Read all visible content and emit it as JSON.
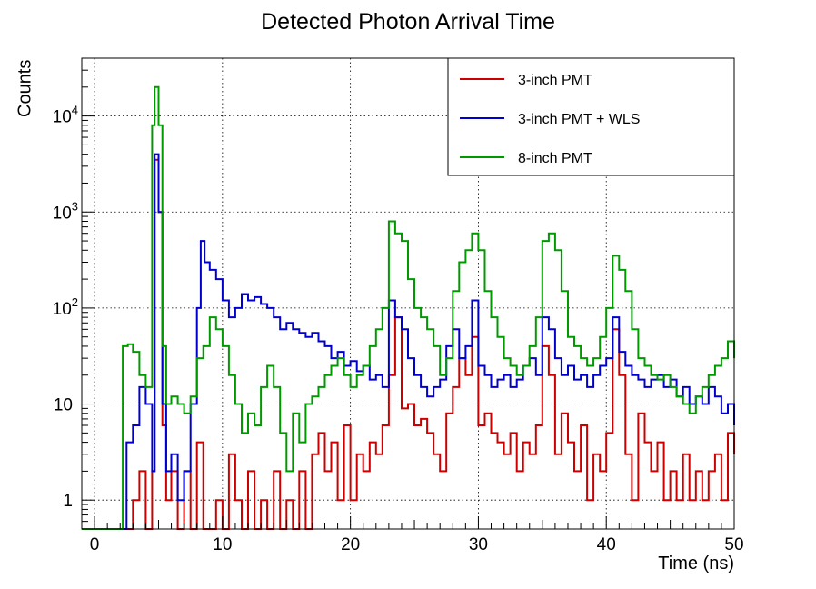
{
  "chart_data": {
    "type": "line",
    "title": "Detected Photon Arrival Time",
    "xlabel": "Time (ns)",
    "ylabel": "Counts",
    "x_scale": "linear",
    "y_scale": "log",
    "xlim": [
      -1,
      50
    ],
    "ylim": [
      0.5,
      40000
    ],
    "grid": true,
    "legend_position": "top-right",
    "x_ticks": [
      "0",
      "10",
      "20",
      "30",
      "40",
      "50"
    ],
    "y_ticks": [
      {
        "value": 1,
        "base": "1",
        "exp": ""
      },
      {
        "value": 10,
        "base": "10",
        "exp": ""
      },
      {
        "value": 100,
        "base": "10",
        "exp": "2"
      },
      {
        "value": 1000,
        "base": "10",
        "exp": "3"
      },
      {
        "value": 10000,
        "base": "10",
        "exp": "4"
      }
    ],
    "series": [
      {
        "name": "3-inch PMT",
        "color": "#cc0000",
        "points": [
          [
            -1,
            0.5
          ],
          [
            2.5,
            0.5
          ],
          [
            3,
            1
          ],
          [
            3.5,
            2
          ],
          [
            4,
            0.5
          ],
          [
            4.5,
            2
          ],
          [
            4.7,
            3500
          ],
          [
            5,
            1000
          ],
          [
            5.3,
            6
          ],
          [
            5.6,
            1
          ],
          [
            6,
            2
          ],
          [
            6.5,
            0.5
          ],
          [
            7,
            2
          ],
          [
            7.5,
            0.5
          ],
          [
            8,
            4
          ],
          [
            8.5,
            0.5
          ],
          [
            9,
            0.5
          ],
          [
            9.5,
            1
          ],
          [
            10,
            0.5
          ],
          [
            10.5,
            3
          ],
          [
            11,
            1
          ],
          [
            11.5,
            0.5
          ],
          [
            12,
            2
          ],
          [
            12.5,
            0.5
          ],
          [
            13,
            1
          ],
          [
            13.5,
            0.5
          ],
          [
            14,
            2
          ],
          [
            14.5,
            0.5
          ],
          [
            15,
            1
          ],
          [
            15.5,
            0.5
          ],
          [
            16,
            2
          ],
          [
            16.5,
            0.5
          ],
          [
            17,
            3
          ],
          [
            17.5,
            5
          ],
          [
            18,
            2
          ],
          [
            18.5,
            4
          ],
          [
            19,
            1
          ],
          [
            19.5,
            6
          ],
          [
            20,
            1
          ],
          [
            20.5,
            3
          ],
          [
            21,
            2
          ],
          [
            21.5,
            4
          ],
          [
            22,
            3
          ],
          [
            22.5,
            6
          ],
          [
            23,
            20
          ],
          [
            23.5,
            80
          ],
          [
            24,
            9
          ],
          [
            24.5,
            10
          ],
          [
            25,
            6
          ],
          [
            25.5,
            7
          ],
          [
            26,
            5
          ],
          [
            26.5,
            3
          ],
          [
            27,
            2
          ],
          [
            27.5,
            8
          ],
          [
            28,
            15
          ],
          [
            28.5,
            30
          ],
          [
            29,
            20
          ],
          [
            29.5,
            50
          ],
          [
            30,
            6
          ],
          [
            30.5,
            8
          ],
          [
            31,
            5
          ],
          [
            31.5,
            4
          ],
          [
            32,
            3
          ],
          [
            32.5,
            5
          ],
          [
            33,
            2
          ],
          [
            33.5,
            4
          ],
          [
            34,
            3
          ],
          [
            34.5,
            6
          ],
          [
            35,
            40
          ],
          [
            35.5,
            20
          ],
          [
            36,
            3
          ],
          [
            36.5,
            8
          ],
          [
            37,
            4
          ],
          [
            37.5,
            2
          ],
          [
            38,
            6
          ],
          [
            38.5,
            1
          ],
          [
            39,
            3
          ],
          [
            39.5,
            2
          ],
          [
            40,
            5
          ],
          [
            40.5,
            60
          ],
          [
            41,
            20
          ],
          [
            41.5,
            3
          ],
          [
            42,
            1
          ],
          [
            42.5,
            8
          ],
          [
            43,
            4
          ],
          [
            43.5,
            2
          ],
          [
            44,
            4
          ],
          [
            44.5,
            1
          ],
          [
            45,
            2
          ],
          [
            45.5,
            1
          ],
          [
            46,
            3
          ],
          [
            46.5,
            1
          ],
          [
            47,
            2
          ],
          [
            47.5,
            1
          ],
          [
            48,
            2
          ],
          [
            48.5,
            3
          ],
          [
            49,
            1
          ],
          [
            49.5,
            5
          ],
          [
            50,
            3
          ]
        ]
      },
      {
        "name": "3-inch PMT + WLS",
        "color": "#0000cc",
        "points": [
          [
            -1,
            0.5
          ],
          [
            2.2,
            0.5
          ],
          [
            2.5,
            4
          ],
          [
            3,
            6
          ],
          [
            3.5,
            15
          ],
          [
            4,
            10
          ],
          [
            4.5,
            2
          ],
          [
            4.7,
            4000
          ],
          [
            5,
            1000
          ],
          [
            5.3,
            10
          ],
          [
            5.6,
            2
          ],
          [
            6,
            3
          ],
          [
            6.5,
            1
          ],
          [
            7,
            2
          ],
          [
            7.5,
            10
          ],
          [
            8,
            100
          ],
          [
            8.3,
            500
          ],
          [
            8.6,
            300
          ],
          [
            9,
            250
          ],
          [
            9.5,
            200
          ],
          [
            10,
            120
          ],
          [
            10.5,
            80
          ],
          [
            11,
            100
          ],
          [
            11.5,
            140
          ],
          [
            12,
            120
          ],
          [
            12.5,
            130
          ],
          [
            13,
            110
          ],
          [
            13.5,
            100
          ],
          [
            14,
            80
          ],
          [
            14.5,
            60
          ],
          [
            15,
            70
          ],
          [
            15.5,
            60
          ],
          [
            16,
            55
          ],
          [
            16.5,
            50
          ],
          [
            17,
            55
          ],
          [
            17.5,
            45
          ],
          [
            18,
            40
          ],
          [
            18.5,
            30
          ],
          [
            19,
            35
          ],
          [
            19.5,
            25
          ],
          [
            20,
            28
          ],
          [
            20.5,
            22
          ],
          [
            21,
            25
          ],
          [
            21.5,
            18
          ],
          [
            22,
            20
          ],
          [
            22.5,
            15
          ],
          [
            23,
            120
          ],
          [
            23.5,
            80
          ],
          [
            24,
            60
          ],
          [
            24.5,
            30
          ],
          [
            25,
            20
          ],
          [
            25.5,
            15
          ],
          [
            26,
            12
          ],
          [
            26.5,
            15
          ],
          [
            27,
            18
          ],
          [
            27.5,
            40
          ],
          [
            28,
            60
          ],
          [
            28.5,
            30
          ],
          [
            29,
            40
          ],
          [
            29.5,
            120
          ],
          [
            30,
            25
          ],
          [
            30.5,
            20
          ],
          [
            31,
            15
          ],
          [
            31.5,
            18
          ],
          [
            32,
            20
          ],
          [
            32.5,
            15
          ],
          [
            33,
            18
          ],
          [
            33.5,
            25
          ],
          [
            34,
            30
          ],
          [
            34.5,
            20
          ],
          [
            35,
            80
          ],
          [
            35.5,
            60
          ],
          [
            36,
            30
          ],
          [
            36.5,
            20
          ],
          [
            37,
            25
          ],
          [
            37.5,
            18
          ],
          [
            38,
            20
          ],
          [
            38.5,
            15
          ],
          [
            39,
            20
          ],
          [
            39.5,
            25
          ],
          [
            40,
            30
          ],
          [
            40.5,
            80
          ],
          [
            41,
            35
          ],
          [
            41.5,
            25
          ],
          [
            42,
            20
          ],
          [
            42.5,
            18
          ],
          [
            43,
            15
          ],
          [
            43.5,
            18
          ],
          [
            44,
            20
          ],
          [
            44.5,
            15
          ],
          [
            45,
            18
          ],
          [
            45.5,
            12
          ],
          [
            46,
            15
          ],
          [
            46.5,
            10
          ],
          [
            47,
            12
          ],
          [
            47.5,
            10
          ],
          [
            48,
            15
          ],
          [
            48.5,
            12
          ],
          [
            49,
            8
          ],
          [
            49.5,
            10
          ],
          [
            50,
            6
          ]
        ]
      },
      {
        "name": "8-inch PMT",
        "color": "#009900",
        "points": [
          [
            -1,
            0.5
          ],
          [
            2,
            0.5
          ],
          [
            2.2,
            40
          ],
          [
            2.6,
            42
          ],
          [
            3,
            35
          ],
          [
            3.5,
            20
          ],
          [
            4,
            15
          ],
          [
            4.5,
            8000
          ],
          [
            4.7,
            20000
          ],
          [
            5,
            8000
          ],
          [
            5.3,
            40
          ],
          [
            5.6,
            10
          ],
          [
            6,
            12
          ],
          [
            6.5,
            10
          ],
          [
            7,
            8
          ],
          [
            7.5,
            12
          ],
          [
            8,
            30
          ],
          [
            8.5,
            40
          ],
          [
            9,
            80
          ],
          [
            9.5,
            60
          ],
          [
            10,
            40
          ],
          [
            10.5,
            20
          ],
          [
            11,
            10
          ],
          [
            11.5,
            5
          ],
          [
            12,
            8
          ],
          [
            12.5,
            6
          ],
          [
            13,
            15
          ],
          [
            13.5,
            25
          ],
          [
            14,
            15
          ],
          [
            14.5,
            5
          ],
          [
            15,
            2
          ],
          [
            15.5,
            8
          ],
          [
            16,
            4
          ],
          [
            16.5,
            10
          ],
          [
            17,
            12
          ],
          [
            17.5,
            15
          ],
          [
            18,
            20
          ],
          [
            18.5,
            25
          ],
          [
            19,
            30
          ],
          [
            19.5,
            20
          ],
          [
            20,
            15
          ],
          [
            20.5,
            20
          ],
          [
            21,
            25
          ],
          [
            21.5,
            40
          ],
          [
            22,
            60
          ],
          [
            22.5,
            100
          ],
          [
            23,
            800
          ],
          [
            23.5,
            600
          ],
          [
            24,
            500
          ],
          [
            24.5,
            200
          ],
          [
            25,
            100
          ],
          [
            25.5,
            80
          ],
          [
            26,
            60
          ],
          [
            26.5,
            40
          ],
          [
            27,
            20
          ],
          [
            27.5,
            30
          ],
          [
            28,
            150
          ],
          [
            28.5,
            300
          ],
          [
            29,
            400
          ],
          [
            29.5,
            600
          ],
          [
            30,
            400
          ],
          [
            30.5,
            150
          ],
          [
            31,
            80
          ],
          [
            31.5,
            50
          ],
          [
            32,
            30
          ],
          [
            32.5,
            25
          ],
          [
            33,
            20
          ],
          [
            33.5,
            25
          ],
          [
            34,
            40
          ],
          [
            34.5,
            80
          ],
          [
            35,
            500
          ],
          [
            35.5,
            600
          ],
          [
            36,
            400
          ],
          [
            36.5,
            150
          ],
          [
            37,
            50
          ],
          [
            37.5,
            40
          ],
          [
            38,
            30
          ],
          [
            38.5,
            25
          ],
          [
            39,
            30
          ],
          [
            39.5,
            50
          ],
          [
            40,
            100
          ],
          [
            40.5,
            350
          ],
          [
            41,
            250
          ],
          [
            41.5,
            150
          ],
          [
            42,
            60
          ],
          [
            42.5,
            30
          ],
          [
            43,
            25
          ],
          [
            43.5,
            20
          ],
          [
            44,
            18
          ],
          [
            44.5,
            20
          ],
          [
            45,
            15
          ],
          [
            45.5,
            12
          ],
          [
            46,
            10
          ],
          [
            46.5,
            8
          ],
          [
            47,
            12
          ],
          [
            47.5,
            15
          ],
          [
            48,
            20
          ],
          [
            48.5,
            25
          ],
          [
            49,
            30
          ],
          [
            49.5,
            45
          ],
          [
            50,
            30
          ]
        ]
      }
    ]
  }
}
